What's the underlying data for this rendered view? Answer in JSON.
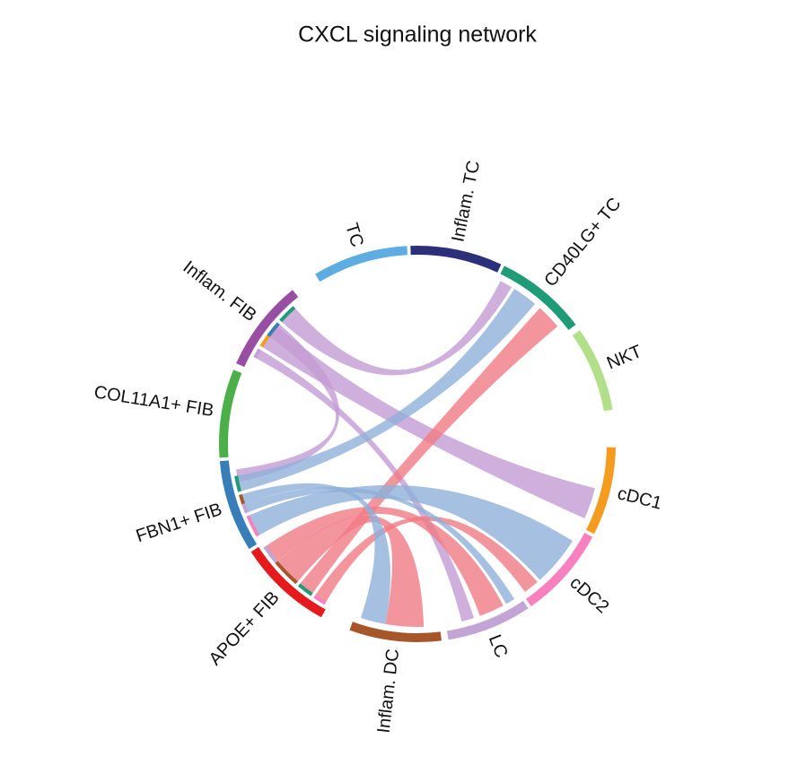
{
  "title": "CXCL signaling network",
  "nodes": [
    {
      "label": "TC",
      "color": "#5dade2"
    },
    {
      "label": "Inflam. TC",
      "color": "#2c2f7a"
    },
    {
      "label": "CD40LG+ TC",
      "color": "#1f9b77"
    },
    {
      "label": "NKT",
      "color": "#b2df8a"
    },
    {
      "label": "cDC1",
      "color": "#f39c1f"
    },
    {
      "label": "cDC2",
      "color": "#f781bf"
    },
    {
      "label": "LC",
      "color": "#c3a4d6"
    },
    {
      "label": "Inflam. DC",
      "color": "#a65628"
    },
    {
      "label": "APOE+ FIB",
      "color": "#e41a1c"
    },
    {
      "label": "FBN1+ FIB",
      "color": "#377eb8"
    },
    {
      "label": "COL11A1+ FIB",
      "color": "#4daf4a"
    },
    {
      "label": "Inflam. FIB",
      "color": "#984ea3"
    }
  ]
}
